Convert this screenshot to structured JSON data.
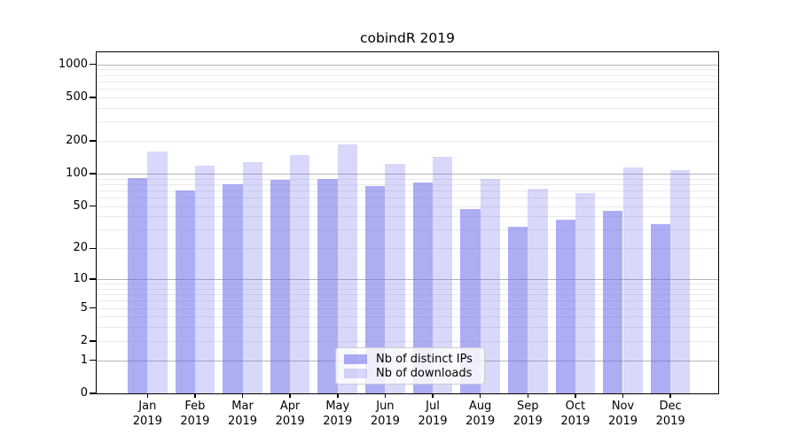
{
  "chart_data": {
    "type": "bar",
    "title": "cobindR 2019",
    "categories": [
      "Jan",
      "Feb",
      "Mar",
      "Apr",
      "May",
      "Jun",
      "Jul",
      "Aug",
      "Sep",
      "Oct",
      "Nov",
      "Dec"
    ],
    "year_label": "2019",
    "series": [
      {
        "name": "Nb of distinct IPs",
        "values": [
          91,
          70,
          79,
          87,
          89,
          77,
          83,
          47,
          32,
          37,
          45,
          34
        ]
      },
      {
        "name": "Nb of downloads",
        "values": [
          160,
          118,
          127,
          149,
          184,
          122,
          143,
          89,
          72,
          66,
          115,
          108
        ]
      }
    ],
    "y_ticks": [
      0,
      1,
      2,
      5,
      10,
      20,
      50,
      100,
      200,
      500,
      1000
    ],
    "y_scale": "log1p",
    "ylim": [
      0,
      1290
    ],
    "xlabel": "",
    "ylabel": "",
    "grid": {
      "major_lines": [
        1,
        10,
        100,
        1000
      ],
      "minor_decades": [
        1,
        10,
        100
      ],
      "minor_multipliers": [
        2,
        3,
        4,
        5,
        6,
        7,
        8,
        9
      ]
    },
    "legend_position": "inside-bottom-center",
    "colors": {
      "bar_base_rgb": "105,105,235",
      "ips_alpha": 0.55,
      "downloads_alpha": 0.26,
      "grid_major": "#b4b4b4",
      "grid_minor": "#eaeaea",
      "spine": "#000000",
      "text": "#000000",
      "legend_border": "#cccccc"
    }
  }
}
